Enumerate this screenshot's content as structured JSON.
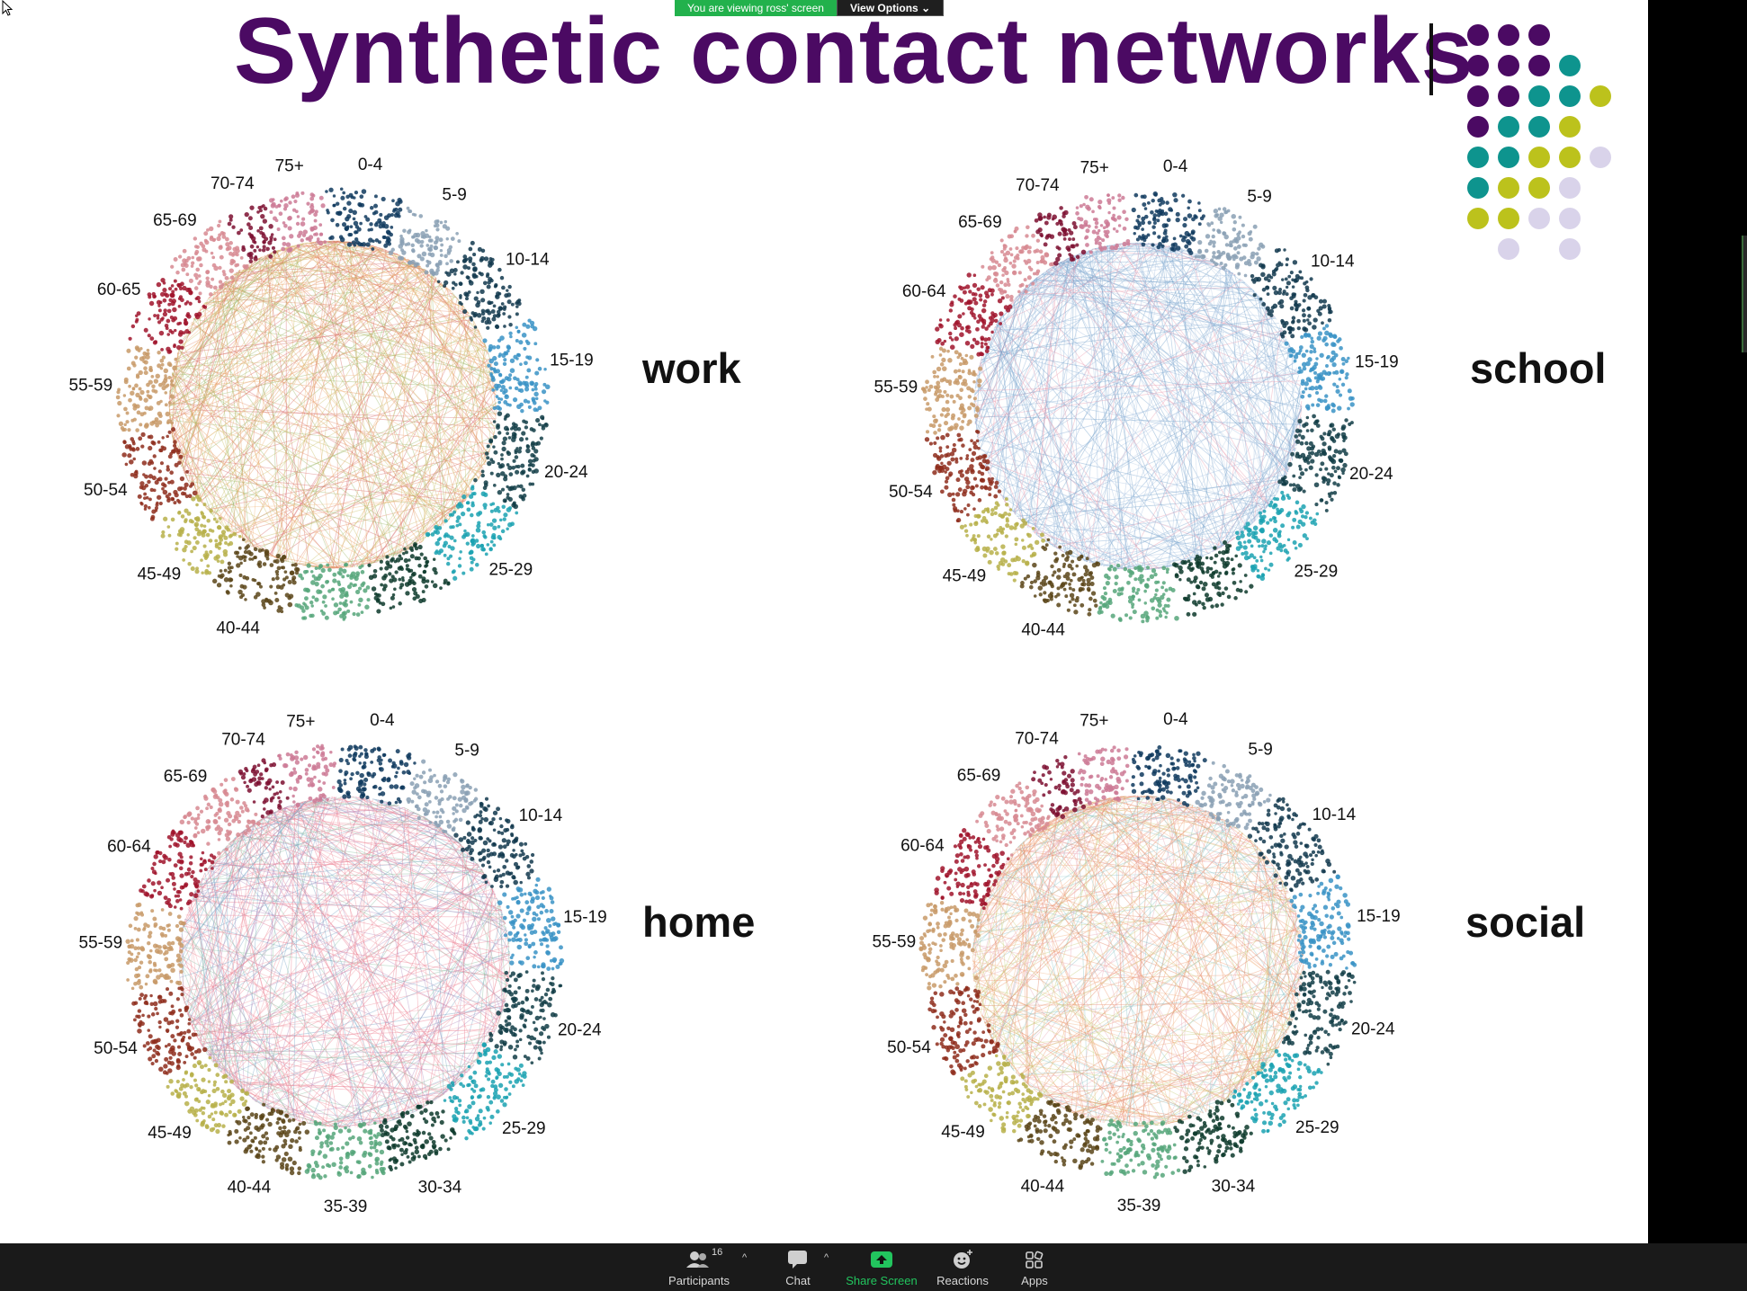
{
  "banner": {
    "viewing_text": "You are viewing ross' screen",
    "options_label": "View Options"
  },
  "slide": {
    "title": "Synthetic contact networks",
    "accent_color": "#4b0a63",
    "logo_colors": [
      "#4b0a63",
      "#0e948e",
      "#bcc21c",
      "#d9d3ea"
    ]
  },
  "age_groups_colors": {
    "0-4": "#0f3a5e",
    "5-9": "#8aa0b4",
    "10-14": "#12384e",
    "15-19": "#3a93c6",
    "20-24": "#123d46",
    "25-29": "#1ba2b2",
    "30-34": "#0d3a2c",
    "35-39": "#56a67a",
    "40-44": "#5b4519",
    "45-49": "#b7b04a",
    "50-54": "#8e2d1c",
    "55-59": "#c89a68",
    "60-64": "#a0142c",
    "65-69": "#d78a92",
    "70-74": "#7d0f30",
    "75+": "#cd7a95"
  },
  "panels": [
    {
      "label": "work",
      "line_palette": [
        "#e58b6c",
        "#f2b57a",
        "#e39a5a",
        "#c9c26a",
        "#9cb869",
        "#d86a6a"
      ],
      "age_labels": [
        "0-4",
        "5-9",
        "10-14",
        "15-19",
        "20-24",
        "25-29",
        "40-44",
        "45-49",
        "50-54",
        "55-59",
        "60-65",
        "65-69",
        "70-74",
        "75+"
      ]
    },
    {
      "label": "school",
      "line_palette": [
        "#8fb4d8",
        "#6e9ec8",
        "#a9c4e2",
        "#7ea9d1",
        "#e99bb0",
        "#bcd0e6"
      ],
      "age_labels": [
        "0-4",
        "5-9",
        "10-14",
        "15-19",
        "20-24",
        "25-29",
        "40-44",
        "45-49",
        "50-54",
        "55-59",
        "60-64",
        "65-69",
        "70-74",
        "75+"
      ]
    },
    {
      "label": "home",
      "line_palette": [
        "#f08a9a",
        "#e9738a",
        "#7aa6c7",
        "#8ec0a5",
        "#f2a0a8",
        "#b48fc0"
      ],
      "age_labels": [
        "0-4",
        "5-9",
        "10-14",
        "15-19",
        "20-24",
        "25-29",
        "30-34",
        "35-39",
        "40-44",
        "45-49",
        "50-54",
        "55-59",
        "60-64",
        "65-69",
        "70-74",
        "75+"
      ]
    },
    {
      "label": "social",
      "line_palette": [
        "#ef9a6e",
        "#f1b382",
        "#e38060",
        "#e9a9b8",
        "#c8cf7a",
        "#8cc4c8"
      ],
      "age_labels": [
        "0-4",
        "5-9",
        "10-14",
        "15-19",
        "20-24",
        "25-29",
        "30-34",
        "35-39",
        "40-44",
        "45-49",
        "50-54",
        "55-59",
        "60-64",
        "65-69",
        "70-74",
        "75+"
      ]
    }
  ],
  "toolbar": {
    "participants_label": "Participants",
    "participants_count": "16",
    "chat_label": "Chat",
    "share_label": "Share Screen",
    "reactions_label": "Reactions",
    "apps_label": "Apps"
  }
}
